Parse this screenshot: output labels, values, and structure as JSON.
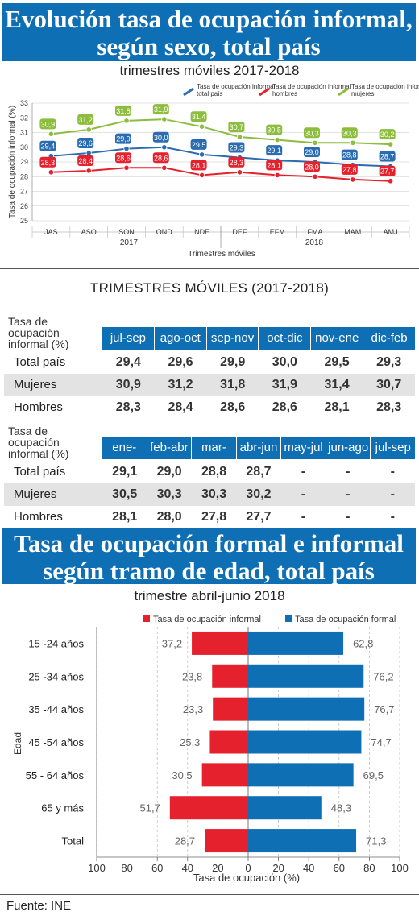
{
  "chart1": {
    "title_line1": "Evolución tasa de ocupación informal,",
    "title_line2": "según sexo, total país",
    "subtitle": "trimestres móviles 2017-2018",
    "ylabel": "Tasa de ocupación informal (%)",
    "xlabel": "Trimestres móviles",
    "year_labels": [
      "2017",
      "2018"
    ],
    "legend": [
      "Tasa de ocupación informal total país",
      "Tasa de ocupación informal hombres",
      "Tasa de ocupación informal mujeres"
    ],
    "colors": {
      "total": "#2b6cb0",
      "hombres": "#e5212d",
      "mujeres": "#8cbd3f"
    }
  },
  "table": {
    "title": "TRIMESTRES MÓVILES (2017-2018)",
    "row_title": [
      "Tasa de",
      "ocupación",
      "informal (%)"
    ],
    "part1": {
      "headers": [
        "jul-sep",
        "ago-oct",
        "sep-nov",
        "oct-dic",
        "nov-ene",
        "dic-feb"
      ],
      "rows": [
        {
          "label": "Total país",
          "values": [
            "29,4",
            "29,6",
            "29,9",
            "30,0",
            "29,5",
            "29,3"
          ]
        },
        {
          "label": "Mujeres",
          "values": [
            "30,9",
            "31,2",
            "31,8",
            "31,9",
            "31,4",
            "30,7"
          ]
        },
        {
          "label": "Hombres",
          "values": [
            "28,3",
            "28,4",
            "28,6",
            "28,6",
            "28,1",
            "28,3"
          ]
        }
      ]
    },
    "part2": {
      "headers": [
        "ene-mar",
        "feb-abr",
        "mar-may",
        "abr-jun",
        "may-jul",
        "jun-ago",
        "jul-sep"
      ],
      "rows": [
        {
          "label": "Total país",
          "values": [
            "29,1",
            "29,0",
            "28,8",
            "28,7",
            "-",
            "-",
            "-"
          ]
        },
        {
          "label": "Mujeres",
          "values": [
            "30,5",
            "30,3",
            "30,3",
            "30,2",
            "-",
            "-",
            "-"
          ]
        },
        {
          "label": "Hombres",
          "values": [
            "28,1",
            "28,0",
            "27,8",
            "27,7",
            "-",
            "-",
            "-"
          ]
        }
      ]
    }
  },
  "chart2": {
    "title_line1": "Tasa de ocupación formal e informal",
    "title_line2": "según tramo de edad, total país",
    "subtitle": "trimestre abril-junio 2018",
    "ylabel": "Edad",
    "xlabel": "Tasa de ocupación (%)",
    "legend": [
      "Tasa de ocupación informal",
      "Tasa de ocupación formal"
    ],
    "colors": {
      "informal": "#e5212d",
      "formal": "#0f6fb5"
    }
  },
  "source": "Fuente: INE",
  "chart_data": [
    {
      "type": "line",
      "title": "Evolución tasa de ocupación informal, según sexo, total país",
      "subtitle": "trimestres móviles 2017-2018",
      "categories": [
        "JAS",
        "ASO",
        "SON",
        "OND",
        "NDE",
        "DEF",
        "EFM",
        "FMA",
        "MAM",
        "AMJ"
      ],
      "series": [
        {
          "name": "Tasa de ocupación informal total país",
          "key": "total",
          "values": [
            29.4,
            29.6,
            29.9,
            30.0,
            29.5,
            29.3,
            29.1,
            29.0,
            28.8,
            28.7
          ]
        },
        {
          "name": "Tasa de ocupación informal hombres",
          "key": "hombres",
          "values": [
            28.3,
            28.4,
            28.6,
            28.6,
            28.1,
            28.3,
            28.1,
            28.0,
            27.8,
            27.7
          ]
        },
        {
          "name": "Tasa de ocupación informal mujeres",
          "key": "mujeres",
          "values": [
            30.9,
            31.2,
            31.8,
            31.9,
            31.4,
            30.7,
            30.5,
            30.3,
            30.3,
            30.2
          ]
        }
      ],
      "value_labels": {
        "total": [
          "29,4",
          "29,6",
          "29,9",
          "30,0",
          "29,5",
          "29,3",
          "29,1",
          "29,0",
          "28,8",
          "28,7"
        ],
        "hombres": [
          "28,3",
          "28,4",
          "28,6",
          "28,6",
          "28,1",
          "28,3",
          "28,1",
          "28,0",
          "27,8",
          "27,7"
        ],
        "mujeres": [
          "30,9",
          "31,2",
          "31,8",
          "31,9",
          "31,4",
          "30,7",
          "30,5",
          "30,3",
          "30,3",
          "30,2"
        ]
      },
      "ylim": [
        25,
        33
      ],
      "yticks": [
        25,
        26,
        27,
        28,
        29,
        30,
        31,
        32,
        33
      ],
      "grid": true,
      "legend_position": "top-right"
    },
    {
      "type": "bar",
      "orientation": "horizontal-diverging",
      "title": "Tasa de ocupación formal e informal según tramo de edad, total país",
      "subtitle": "trimestre abril-junio 2018",
      "categories": [
        "15 -24 años",
        "25 -34 años",
        "35 -44 años",
        "45 -54 años",
        "55 - 64 años",
        "65 y más",
        "Total"
      ],
      "series": [
        {
          "name": "Tasa de ocupación informal",
          "key": "informal",
          "values": [
            37.2,
            23.8,
            23.3,
            25.3,
            30.5,
            51.7,
            28.7
          ],
          "labels": [
            "37,2",
            "23,8",
            "23,3",
            "25,3",
            "30,5",
            "51,7",
            "28,7"
          ]
        },
        {
          "name": "Tasa de ocupación formal",
          "key": "formal",
          "values": [
            62.8,
            76.2,
            76.7,
            74.7,
            69.5,
            48.3,
            71.3
          ],
          "labels": [
            "62,8",
            "76,2",
            "76,7",
            "74,7",
            "69,5",
            "48,3",
            "71,3"
          ]
        }
      ],
      "xlim": [
        -100,
        100
      ],
      "xticks": [
        "100",
        "80",
        "60",
        "40",
        "20",
        "0",
        "20",
        "40",
        "60",
        "80",
        "100"
      ],
      "grid": true,
      "legend_position": "top"
    }
  ]
}
